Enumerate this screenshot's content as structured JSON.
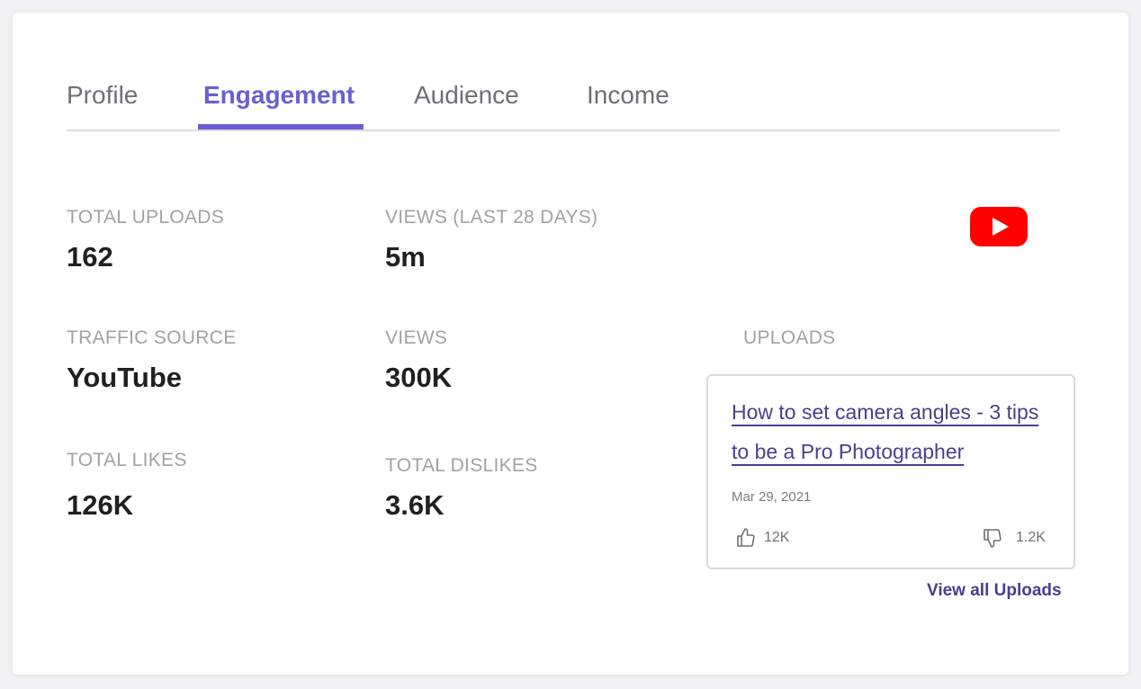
{
  "tabs": [
    {
      "label": "Profile"
    },
    {
      "label": "Engagement"
    },
    {
      "label": "Audience"
    },
    {
      "label": "Income"
    }
  ],
  "active_tab": "Engagement",
  "stats": {
    "total_uploads": {
      "label": "TOTAL UPLOADS",
      "value": "162"
    },
    "views_28": {
      "label": "VIEWS (LAST 28 DAYS)",
      "value": "5m"
    },
    "traffic_source": {
      "label": "TRAFFIC SOURCE",
      "value": "YouTube"
    },
    "views": {
      "label": "VIEWS",
      "value": "300K"
    },
    "total_likes": {
      "label": "TOTAL LIKES",
      "value": "126K"
    },
    "total_dislikes": {
      "label": "TOTAL DISLIKES",
      "value": "3.6K"
    }
  },
  "uploads": {
    "label": "UPLOADS",
    "item": {
      "title": "How to set camera angles - 3 tips to be a Pro Photographer",
      "date": "Mar 29, 2021",
      "likes": "12K",
      "dislikes": "1.2K"
    },
    "view_all_label": "View all Uploads"
  },
  "colors": {
    "accent": "#6b5fd0",
    "link": "#4a3f8e",
    "youtube_red": "#ff0000"
  },
  "icons": {
    "platform": "youtube-logo-icon",
    "like": "thumbs-up-icon",
    "dislike": "thumbs-down-icon"
  }
}
